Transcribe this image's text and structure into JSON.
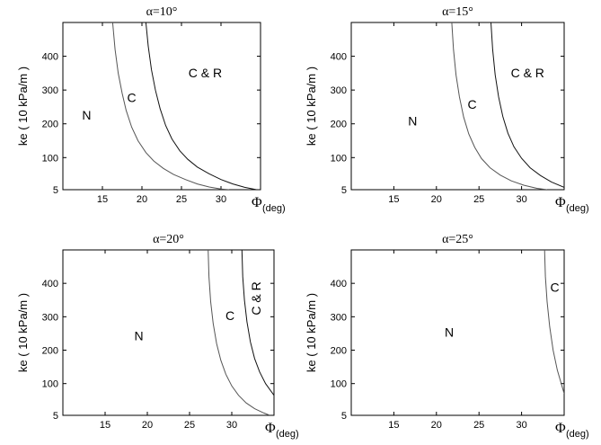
{
  "chart_data": [
    {
      "type": "line",
      "title": "α=10°",
      "xlabel": "Φ",
      "xlabel_sub": "(deg)",
      "ylabel": "ke ( 10 kPa/m )",
      "xlim": [
        10,
        35
      ],
      "ylim": [
        5,
        500
      ],
      "xticks": [
        15,
        20,
        25,
        30
      ],
      "yticks": [
        5,
        100,
        200,
        300,
        400
      ],
      "series": [
        {
          "color": "#555555",
          "x": [
            16.3,
            16.6,
            17.0,
            17.5,
            18.0,
            18.7,
            19.5,
            20.5,
            21.5,
            22.7,
            24.0,
            25.5,
            27.0,
            28.5,
            30.0,
            31.0
          ],
          "y": [
            500,
            420,
            350,
            290,
            240,
            190,
            150,
            115,
            90,
            68,
            50,
            35,
            22,
            13,
            7,
            5
          ]
        },
        {
          "color": "#111111",
          "x": [
            20.5,
            20.8,
            21.2,
            21.7,
            22.3,
            23.0,
            23.8,
            24.8,
            25.8,
            27.0,
            28.5,
            30.0,
            31.5,
            33.0,
            34.5
          ],
          "y": [
            500,
            430,
            360,
            300,
            245,
            195,
            155,
            120,
            95,
            72,
            52,
            35,
            22,
            12,
            5
          ]
        }
      ],
      "regions": [
        {
          "text": "N",
          "x": 13.0,
          "y": 212
        },
        {
          "text": "C",
          "x": 18.7,
          "y": 265
        },
        {
          "text": "C & R",
          "x": 28.0,
          "y": 338
        }
      ]
    },
    {
      "type": "line",
      "title": "α=15°",
      "xlabel": "Φ",
      "xlabel_sub": "(deg)",
      "ylabel": "ke ( 10 kPa/m )",
      "xlim": [
        10,
        35
      ],
      "ylim": [
        5,
        500
      ],
      "xticks": [
        15,
        20,
        25,
        30
      ],
      "yticks": [
        5,
        100,
        200,
        300,
        400
      ],
      "series": [
        {
          "color": "#555555",
          "x": [
            21.8,
            22.0,
            22.3,
            22.7,
            23.2,
            23.8,
            24.5,
            25.3,
            26.3,
            27.5,
            28.8,
            30.3,
            31.8,
            33.0
          ],
          "y": [
            500,
            420,
            345,
            280,
            220,
            170,
            130,
            97,
            70,
            48,
            31,
            18,
            9,
            5
          ]
        },
        {
          "color": "#111111",
          "x": [
            26.4,
            26.6,
            26.9,
            27.3,
            27.8,
            28.4,
            29.1,
            30.0,
            31.0,
            32.2,
            33.5,
            35.0
          ],
          "y": [
            500,
            420,
            345,
            280,
            222,
            172,
            132,
            98,
            70,
            47,
            28,
            12
          ]
        }
      ],
      "regions": [
        {
          "text": "N",
          "x": 17.2,
          "y": 195
        },
        {
          "text": "C",
          "x": 24.2,
          "y": 245
        },
        {
          "text": "C & R",
          "x": 30.7,
          "y": 338
        }
      ]
    },
    {
      "type": "line",
      "title": "α=20°",
      "xlabel": "Φ",
      "xlabel_sub": "(deg)",
      "ylabel": "ke ( 10 kPa/m )",
      "xlim": [
        10,
        35
      ],
      "ylim": [
        5,
        500
      ],
      "xticks": [
        15,
        20,
        25,
        30
      ],
      "yticks": [
        5,
        100,
        200,
        300,
        400
      ],
      "series": [
        {
          "color": "#555555",
          "x": [
            27.2,
            27.3,
            27.5,
            27.8,
            28.2,
            28.7,
            29.3,
            30.0,
            30.8,
            31.7,
            32.7,
            33.8,
            34.5
          ],
          "y": [
            500,
            420,
            345,
            280,
            220,
            170,
            128,
            93,
            65,
            42,
            25,
            12,
            5
          ]
        },
        {
          "color": "#111111",
          "x": [
            31.2,
            31.3,
            31.5,
            31.8,
            32.2,
            32.7,
            33.3,
            34.0,
            35.0
          ],
          "y": [
            500,
            420,
            350,
            285,
            225,
            175,
            135,
            100,
            65
          ]
        }
      ],
      "regions": [
        {
          "text": "N",
          "x": 19.0,
          "y": 230
        },
        {
          "text": "C",
          "x": 29.8,
          "y": 290
        },
        {
          "text": "C & R",
          "x": 33.4,
          "y": 355,
          "rotate": -90
        }
      ]
    },
    {
      "type": "line",
      "title": "α=25°",
      "xlabel": "Φ",
      "xlabel_sub": "(deg)",
      "ylabel": "ke ( 10 kPa/m )",
      "xlim": [
        10,
        35
      ],
      "ylim": [
        5,
        500
      ],
      "xticks": [
        15,
        20,
        25,
        30
      ],
      "yticks": [
        5,
        100,
        200,
        300,
        400
      ],
      "series": [
        {
          "color": "#555555",
          "x": [
            32.7,
            32.8,
            33.0,
            33.3,
            33.7,
            34.2,
            35.0
          ],
          "y": [
            500,
            420,
            345,
            270,
            200,
            140,
            70
          ]
        }
      ],
      "regions": [
        {
          "text": "N",
          "x": 21.5,
          "y": 240
        },
        {
          "text": "C",
          "x": 33.9,
          "y": 375
        }
      ]
    }
  ]
}
